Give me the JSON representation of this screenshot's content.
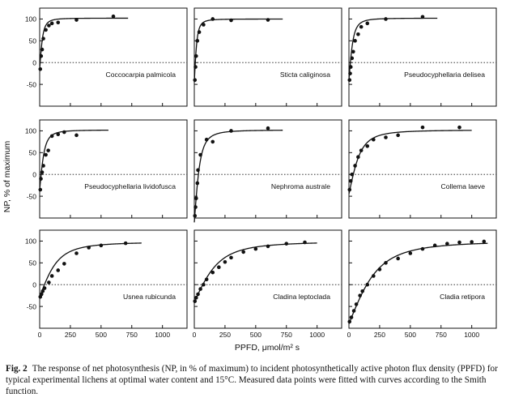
{
  "chart_data": {
    "type": "scatter",
    "layout": "3x3 grid",
    "ylabel": "NP, % of maximum",
    "xlabel": "PPFD, μmol/m² s",
    "xlim": [
      0,
      1200
    ],
    "ylim": [
      -100,
      125
    ],
    "x_ticks": [
      0,
      250,
      500,
      750,
      1000
    ],
    "y_ticks": [
      -50,
      0,
      50,
      100
    ],
    "zero_line": "dotted",
    "grid": false,
    "fit": "Smith function",
    "panels": [
      {
        "species": "Coccocarpia palmicola",
        "fit_max_x": 720,
        "fit": {
          "rd": 15,
          "amax": 102,
          "k": 30
        },
        "points": [
          [
            5,
            -15
          ],
          [
            12,
            15
          ],
          [
            20,
            30
          ],
          [
            30,
            55
          ],
          [
            50,
            75
          ],
          [
            75,
            85
          ],
          [
            100,
            90
          ],
          [
            150,
            92
          ],
          [
            300,
            98
          ],
          [
            600,
            106
          ]
        ]
      },
      {
        "species": "Sticta caliginosa",
        "fit_max_x": 720,
        "fit": {
          "rd": 45,
          "amax": 100,
          "k": 25
        },
        "points": [
          [
            5,
            -40
          ],
          [
            10,
            -10
          ],
          [
            15,
            15
          ],
          [
            25,
            50
          ],
          [
            40,
            70
          ],
          [
            75,
            87
          ],
          [
            150,
            100
          ],
          [
            300,
            97
          ],
          [
            600,
            98
          ]
        ]
      },
      {
        "species": "Pseudocyphellaria delisea",
        "fit_max_x": 720,
        "fit": {
          "rd": 40,
          "amax": 102,
          "k": 40
        },
        "points": [
          [
            5,
            -40
          ],
          [
            10,
            -25
          ],
          [
            15,
            -10
          ],
          [
            25,
            10
          ],
          [
            35,
            25
          ],
          [
            50,
            50
          ],
          [
            75,
            65
          ],
          [
            100,
            82
          ],
          [
            150,
            90
          ],
          [
            300,
            100
          ],
          [
            600,
            105
          ]
        ]
      },
      {
        "species": "Pseudocyphellaria lividofusca",
        "fit_max_x": 560,
        "fit": {
          "rd": 35,
          "amax": 102,
          "k": 45
        },
        "points": [
          [
            5,
            -35
          ],
          [
            10,
            -10
          ],
          [
            20,
            5
          ],
          [
            30,
            20
          ],
          [
            50,
            45
          ],
          [
            70,
            55
          ],
          [
            100,
            88
          ],
          [
            150,
            92
          ],
          [
            200,
            97
          ],
          [
            300,
            90
          ]
        ]
      },
      {
        "species": "Nephroma australe",
        "fit_max_x": 720,
        "fit": {
          "rd": 110,
          "amax": 102,
          "k": 55
        },
        "points": [
          [
            5,
            -95
          ],
          [
            10,
            -75
          ],
          [
            15,
            -55
          ],
          [
            25,
            -20
          ],
          [
            30,
            10
          ],
          [
            50,
            45
          ],
          [
            100,
            80
          ],
          [
            150,
            75
          ],
          [
            300,
            100
          ],
          [
            600,
            106
          ]
        ]
      },
      {
        "species": "Collema laeve",
        "fit_max_x": 1000,
        "fit": {
          "rd": 45,
          "amax": 102,
          "k": 110
        },
        "points": [
          [
            5,
            -35
          ],
          [
            15,
            -15
          ],
          [
            25,
            0
          ],
          [
            50,
            20
          ],
          [
            75,
            40
          ],
          [
            100,
            55
          ],
          [
            150,
            65
          ],
          [
            200,
            80
          ],
          [
            300,
            85
          ],
          [
            400,
            90
          ],
          [
            600,
            108
          ],
          [
            900,
            108
          ]
        ]
      },
      {
        "species": "Usnea rubicunda",
        "fit_max_x": 830,
        "fit": {
          "rd": 28,
          "amax": 98,
          "k": 170
        },
        "points": [
          [
            5,
            -28
          ],
          [
            15,
            -22
          ],
          [
            25,
            -15
          ],
          [
            40,
            -8
          ],
          [
            75,
            5
          ],
          [
            100,
            20
          ],
          [
            150,
            33
          ],
          [
            200,
            48
          ],
          [
            300,
            72
          ],
          [
            400,
            85
          ],
          [
            500,
            90
          ],
          [
            700,
            95
          ]
        ]
      },
      {
        "species": "Cladina leptoclada",
        "fit_max_x": 1000,
        "fit": {
          "rd": 40,
          "amax": 99,
          "k": 230
        },
        "points": [
          [
            5,
            -38
          ],
          [
            15,
            -30
          ],
          [
            30,
            -22
          ],
          [
            50,
            -10
          ],
          [
            75,
            0
          ],
          [
            100,
            12
          ],
          [
            150,
            28
          ],
          [
            200,
            40
          ],
          [
            250,
            52
          ],
          [
            300,
            62
          ],
          [
            400,
            75
          ],
          [
            500,
            82
          ],
          [
            600,
            88
          ],
          [
            750,
            94
          ],
          [
            900,
            97
          ]
        ]
      },
      {
        "species": "Cladia retipora",
        "fit_max_x": 1130,
        "fit": {
          "rd": 90,
          "amax": 100,
          "k": 270
        },
        "points": [
          [
            5,
            -85
          ],
          [
            20,
            -75
          ],
          [
            40,
            -60
          ],
          [
            60,
            -45
          ],
          [
            90,
            -25
          ],
          [
            110,
            -15
          ],
          [
            150,
            0
          ],
          [
            200,
            20
          ],
          [
            250,
            35
          ],
          [
            300,
            50
          ],
          [
            400,
            60
          ],
          [
            500,
            72
          ],
          [
            600,
            82
          ],
          [
            700,
            90
          ],
          [
            800,
            94
          ],
          [
            900,
            97
          ],
          [
            1000,
            98
          ],
          [
            1100,
            99
          ]
        ]
      }
    ]
  },
  "caption": {
    "label": "Fig. 2",
    "text": "The response of net photosynthesis (NP, in % of maximum) to incident photosynthetically active photon flux density (PPFD) for typical experimental lichens at optimal water content and 15°C. Measured data points were fitted with curves according to the Smith function."
  }
}
